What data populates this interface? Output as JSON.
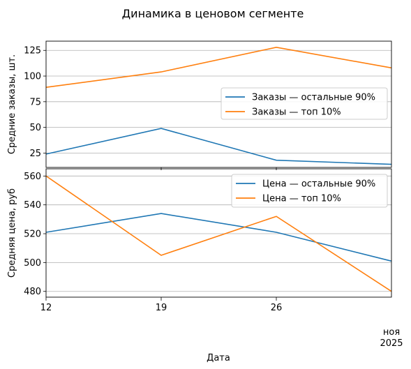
{
  "title": "Динамика в ценовом сегменте",
  "colors": {
    "blue": "#1f77b4",
    "orange": "#ff7f0e",
    "grid": "#b0b0b0"
  },
  "xaxis": {
    "label": "Дата",
    "ticks": [
      "12",
      "19",
      "26"
    ],
    "month": "ноя",
    "year": "2025"
  },
  "chart_data": [
    {
      "type": "line",
      "x": [
        "2025-11-12",
        "2025-11-19",
        "2025-11-26",
        "2025-12-03"
      ],
      "ylabel": "Средние заказы, шт.",
      "ylim": [
        11,
        134
      ],
      "yticks": [
        25,
        50,
        75,
        100,
        125
      ],
      "grid": true,
      "legend": "center-right",
      "series": [
        {
          "name": "Заказы — остальные 90%",
          "color": "#1f77b4",
          "values": [
            24,
            49,
            18,
            14
          ]
        },
        {
          "name": "Заказы — топ 10%",
          "color": "#ff7f0e",
          "values": [
            89,
            104,
            128,
            108
          ]
        }
      ]
    },
    {
      "type": "line",
      "x": [
        "2025-11-12",
        "2025-11-19",
        "2025-11-26",
        "2025-12-03"
      ],
      "ylabel": "Средняя цена, руб",
      "ylim": [
        476,
        565
      ],
      "yticks": [
        480,
        500,
        520,
        540,
        560
      ],
      "grid": true,
      "legend": "top-right",
      "series": [
        {
          "name": "Цена — остальные 90%",
          "color": "#1f77b4",
          "values": [
            521,
            534,
            521,
            501
          ]
        },
        {
          "name": "Цена — топ 10%",
          "color": "#ff7f0e",
          "values": [
            560,
            505,
            532,
            480
          ]
        }
      ]
    }
  ]
}
